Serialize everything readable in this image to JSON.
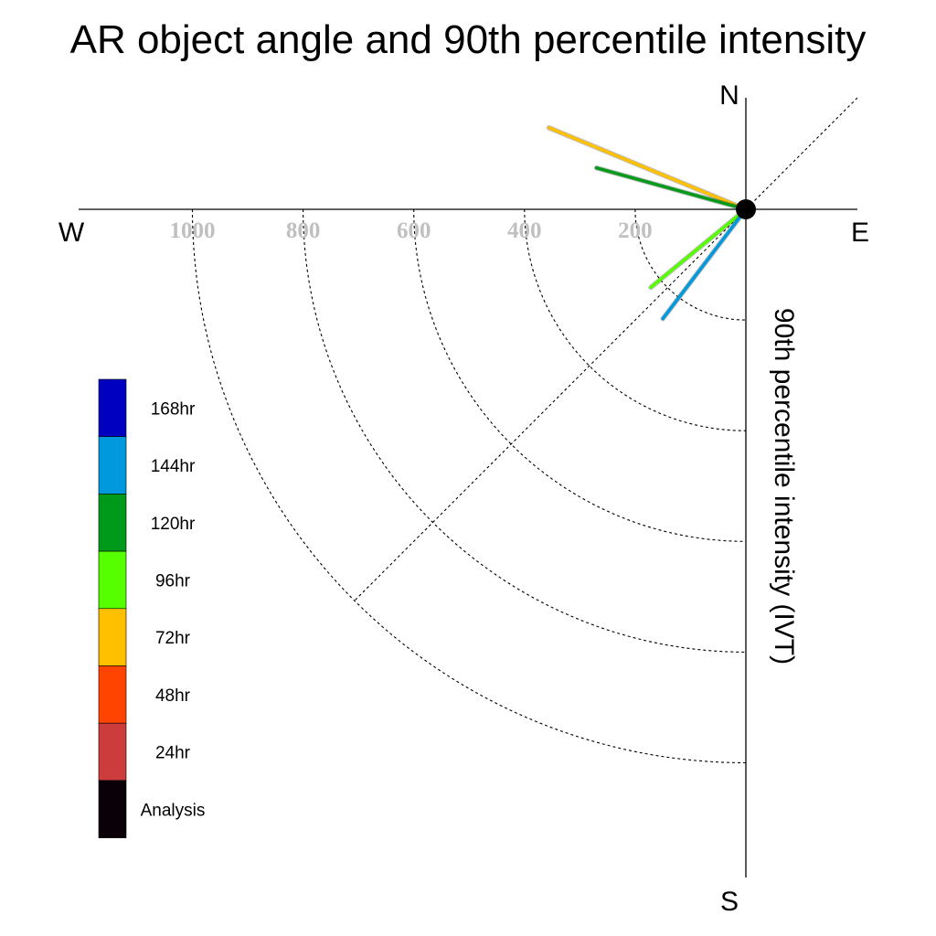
{
  "chart_data": {
    "type": "polar-line",
    "title": "AR object angle and 90th percentile intensity",
    "radial_label": "90th percentile intensity (IVT)",
    "compass": {
      "north": "N",
      "south": "S",
      "east": "E",
      "west": "W"
    },
    "radial_ticks": [
      200,
      400,
      600,
      800,
      1000
    ],
    "radial_tick_labels": [
      "200",
      "400",
      "600",
      "800",
      "1000"
    ],
    "radial_max": 1000,
    "angle_reference": "degrees counterclockwise from West",
    "series": [
      {
        "name": "72hr",
        "angle_deg": 22.5,
        "intensity": 385,
        "color": "#ffc000"
      },
      {
        "name": "120hr",
        "angle_deg": 15.5,
        "intensity": 280,
        "color": "#009a1a"
      },
      {
        "name": "96hr",
        "angle_deg": -39.4,
        "intensity": 222,
        "color": "#55ff00"
      },
      {
        "name": "144hr",
        "angle_deg": -52.8,
        "intensity": 248,
        "color": "#0099dd"
      }
    ],
    "legend": [
      {
        "label": "168hr",
        "color": "#0000c0"
      },
      {
        "label": "144hr",
        "color": "#0099dd"
      },
      {
        "label": "120hr",
        "color": "#009a1a"
      },
      {
        "label": "96hr",
        "color": "#55ff00"
      },
      {
        "label": "72hr",
        "color": "#ffc000"
      },
      {
        "label": "48hr",
        "color": "#ff4400"
      },
      {
        "label": "24hr",
        "color": "#cc3c3c"
      },
      {
        "label": "Analysis",
        "color": "#0a0008"
      }
    ],
    "legend_position": "bottom-left",
    "grid": true
  }
}
